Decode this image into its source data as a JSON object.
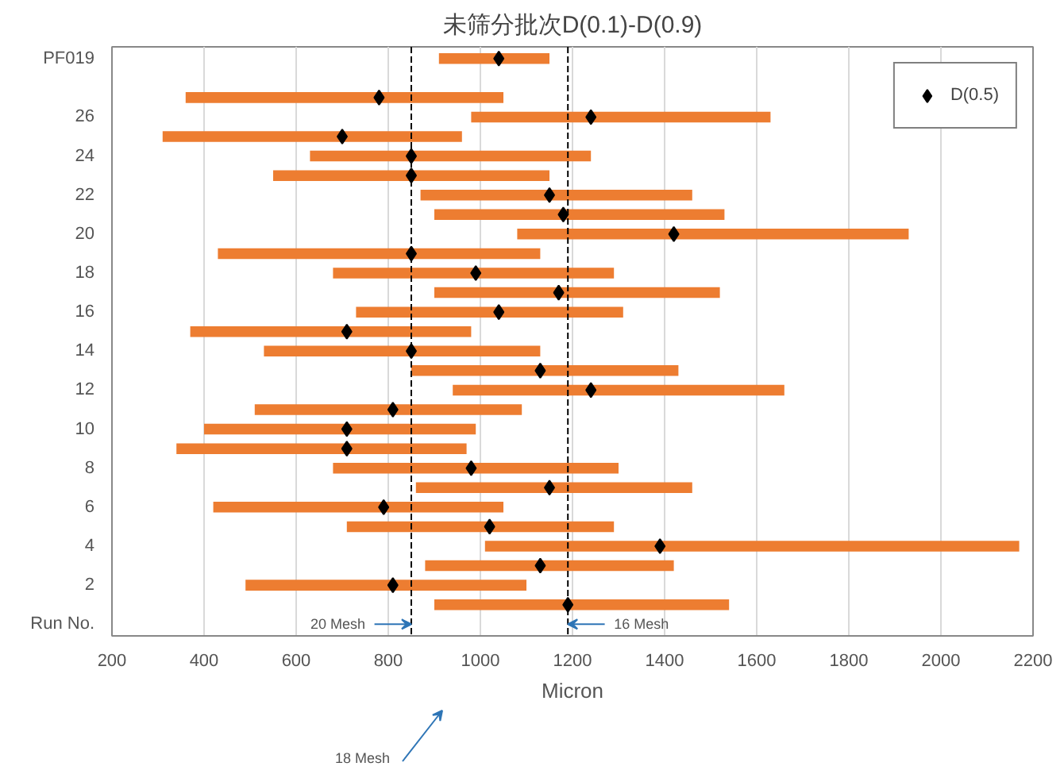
{
  "chart_data": {
    "type": "bar",
    "orientation": "horizontal",
    "title": "未筛分批次D(0.1)-D(0.9)",
    "xlabel": "Micron",
    "categories": [
      "PF019",
      null,
      null,
      "26",
      null,
      "24",
      null,
      "22",
      null,
      "20",
      null,
      "18",
      null,
      "16",
      null,
      "14",
      null,
      "12",
      null,
      "10",
      null,
      "8",
      null,
      "6",
      null,
      "4",
      null,
      "2",
      null,
      "Run No."
    ],
    "series": [
      {
        "color": "#ed7d31",
        "base": [
          910,
          null,
          360,
          980,
          310,
          630,
          550,
          870,
          900,
          1080,
          430,
          680,
          900,
          730,
          370,
          530,
          850,
          940,
          510,
          400,
          340,
          680,
          860,
          420,
          710,
          1010,
          880,
          490,
          900,
          null
        ],
        "values": [
          240,
          null,
          690,
          650,
          650,
          610,
          600,
          590,
          630,
          850,
          700,
          610,
          620,
          580,
          610,
          600,
          580,
          720,
          580,
          590,
          630,
          620,
          600,
          630,
          580,
          1160,
          540,
          610,
          640,
          null
        ]
      },
      {
        "type": "scatter",
        "name": "D(0.5)",
        "color": "#000000",
        "marker": "diamond",
        "values": [
          1040,
          null,
          780,
          1240,
          700,
          850,
          850,
          1150,
          1180,
          1420,
          850,
          990,
          1170,
          1040,
          710,
          850,
          1130,
          1240,
          810,
          710,
          710,
          980,
          1150,
          790,
          1020,
          1390,
          1130,
          810,
          1190,
          null
        ]
      }
    ],
    "xlim": [
      200,
      2200
    ],
    "xticks": [
      200,
      400,
      600,
      800,
      1000,
      1200,
      1400,
      1600,
      1800,
      2000,
      2200
    ],
    "ref_lines": [
      {
        "axis": "x",
        "value": 850,
        "color": "#000000",
        "line_style": "dashed"
      },
      {
        "axis": "x",
        "value": 1190,
        "color": "#000000",
        "line_style": "dashed"
      }
    ],
    "annotations": [
      {
        "text": "20 Mesh",
        "x": 850
      },
      {
        "text": "16 Mesh",
        "x": 1190
      },
      "18 Mesh"
    ],
    "grid": "x",
    "legend": "top right"
  }
}
